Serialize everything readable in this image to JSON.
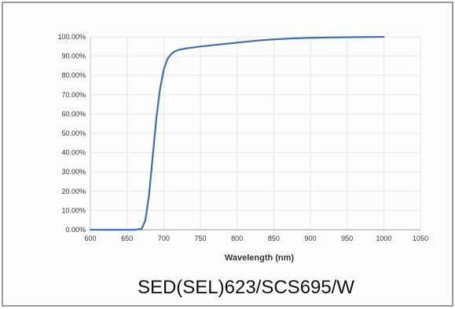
{
  "chart_data": {
    "type": "line",
    "title": "",
    "caption": "SED(SEL)623/SCS695/W",
    "xlabel": "Wavelength (nm)",
    "ylabel": "",
    "xlim": [
      600,
      1050
    ],
    "ylim": [
      0,
      100
    ],
    "x_ticks": [
      "600",
      "650",
      "700",
      "750",
      "800",
      "850",
      "900",
      "950",
      "1000",
      "1050"
    ],
    "y_ticks": [
      "0.00%",
      "10.00%",
      "20.00%",
      "30.00%",
      "40.00%",
      "50.00%",
      "60.00%",
      "70.00%",
      "80.00%",
      "90.00%",
      "100.00%"
    ],
    "grid": true,
    "series_color": "#3b6fb6",
    "series": [
      {
        "x": [
          600,
          640,
          660,
          670,
          675,
          680,
          685,
          690,
          695,
          700,
          705,
          710,
          715,
          720,
          730,
          740,
          750,
          775,
          800,
          825,
          850,
          875,
          900,
          925,
          950,
          975,
          1000
        ],
        "values": [
          0,
          0,
          0,
          0.5,
          5,
          18,
          38,
          58,
          73,
          83,
          88.5,
          91,
          92.5,
          93.2,
          94,
          94.5,
          95,
          96,
          97,
          98,
          98.7,
          99.2,
          99.5,
          99.7,
          99.8,
          99.9,
          100
        ]
      }
    ]
  }
}
